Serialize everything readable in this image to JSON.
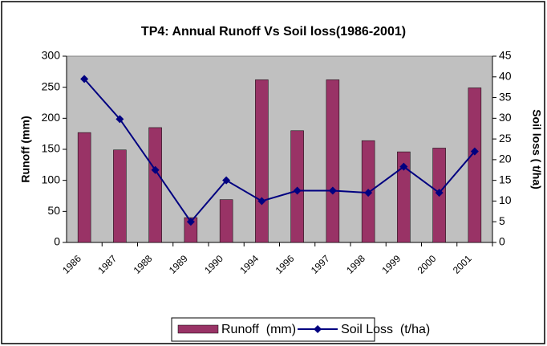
{
  "chart_data": {
    "type": "bar",
    "title": "TP4: Annual Runoff Vs Soil loss(1986-2001)",
    "y_label": "Runoff (mm)",
    "y2_label": "Soil loss ( t/ha)",
    "categories": [
      "1986",
      "1987",
      "1988",
      "1989",
      "1990",
      "1994",
      "1996",
      "1997",
      "1998",
      "1999",
      "2000",
      "2001"
    ],
    "series": [
      {
        "name": "Runoff  (mm)",
        "type": "bar",
        "color": "#993366",
        "values": [
          177,
          149,
          185,
          40,
          69,
          262,
          180,
          262,
          164,
          146,
          152,
          249
        ]
      },
      {
        "name": "Soil Loss  (t/ha)",
        "type": "line",
        "axis": "y2",
        "color": "#000080",
        "values": [
          39.5,
          29.8,
          17.5,
          5,
          15,
          10,
          12.5,
          12.5,
          12,
          18.3,
          12,
          22
        ]
      }
    ],
    "ylim": [
      0,
      300
    ],
    "yticks": [
      0,
      50,
      100,
      150,
      200,
      250,
      300
    ],
    "y2lim": [
      0,
      45
    ],
    "y2ticks": [
      0,
      5,
      10,
      15,
      20,
      25,
      30,
      35,
      40,
      45
    ],
    "grid": false,
    "legend": "bottom",
    "plot_background": "#c0c0c0"
  }
}
